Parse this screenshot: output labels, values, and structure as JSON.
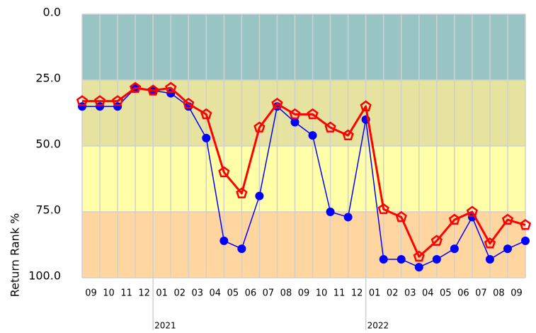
{
  "chart_data": {
    "type": "line",
    "y_label": "Return Rank %",
    "categories": [
      "09",
      "10",
      "11",
      "12",
      "01",
      "02",
      "03",
      "04",
      "05",
      "06",
      "07",
      "08",
      "09",
      "10",
      "11",
      "12",
      "01",
      "02",
      "03",
      "04",
      "05",
      "06",
      "07",
      "08",
      "09",
      null
    ],
    "x_groups": [
      {
        "label": "2021",
        "start": 4
      },
      {
        "label": "2022",
        "start": 16
      }
    ],
    "ylim": [
      0,
      100
    ],
    "y_inverted": true,
    "yticks": [
      {
        "value": 0,
        "label": "0.0"
      },
      {
        "value": 25,
        "label": "25.0"
      },
      {
        "value": 50,
        "label": "50.0"
      },
      {
        "value": 75,
        "label": "75.0"
      },
      {
        "value": 100,
        "label": "100.0"
      }
    ],
    "bands": [
      {
        "from": 0,
        "to": 25,
        "color": "#99c4c4"
      },
      {
        "from": 25,
        "to": 50,
        "color": "#e6e2a0"
      },
      {
        "from": 50,
        "to": 75,
        "color": "#ffffa8"
      },
      {
        "from": 75,
        "to": 100,
        "color": "#ffd5a0"
      }
    ],
    "grid": true,
    "series": [
      {
        "color": "#0000ff",
        "marker": "circle",
        "values": [
          35,
          35,
          35,
          28,
          29,
          30,
          35,
          47,
          86,
          89,
          69,
          35,
          41,
          46,
          75,
          77,
          40,
          93,
          93,
          96,
          93,
          89,
          77,
          93,
          89,
          86
        ]
      },
      {
        "color": "#ff0000",
        "marker": "pentagon",
        "values": [
          33,
          33,
          33,
          28,
          29,
          28,
          34,
          38,
          60,
          68,
          43,
          34,
          38,
          38,
          43,
          46,
          35,
          74,
          77,
          92,
          86,
          78,
          75,
          87,
          78,
          80
        ]
      }
    ]
  }
}
